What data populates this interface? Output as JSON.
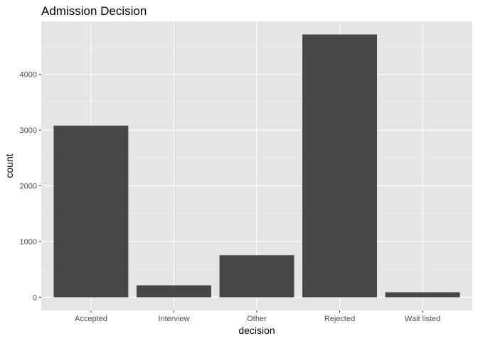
{
  "chart_data": {
    "type": "bar",
    "title": "Admission Decision",
    "xlabel": "decision",
    "ylabel": "count",
    "categories": [
      "Accepted",
      "Interview",
      "Other",
      "Rejected",
      "Wait listed"
    ],
    "values": [
      3080,
      215,
      755,
      4715,
      90
    ],
    "ylim": [
      -236,
      4951
    ],
    "yticks": [
      0,
      1000,
      2000,
      3000,
      4000
    ],
    "ytick_labels": [
      "0",
      "1000",
      "2000",
      "3000",
      "4000"
    ],
    "grid": true,
    "legend": "none",
    "colors": {
      "panel": "#e5e5e5",
      "bar": "#474747",
      "grid": "#ffffff"
    }
  }
}
